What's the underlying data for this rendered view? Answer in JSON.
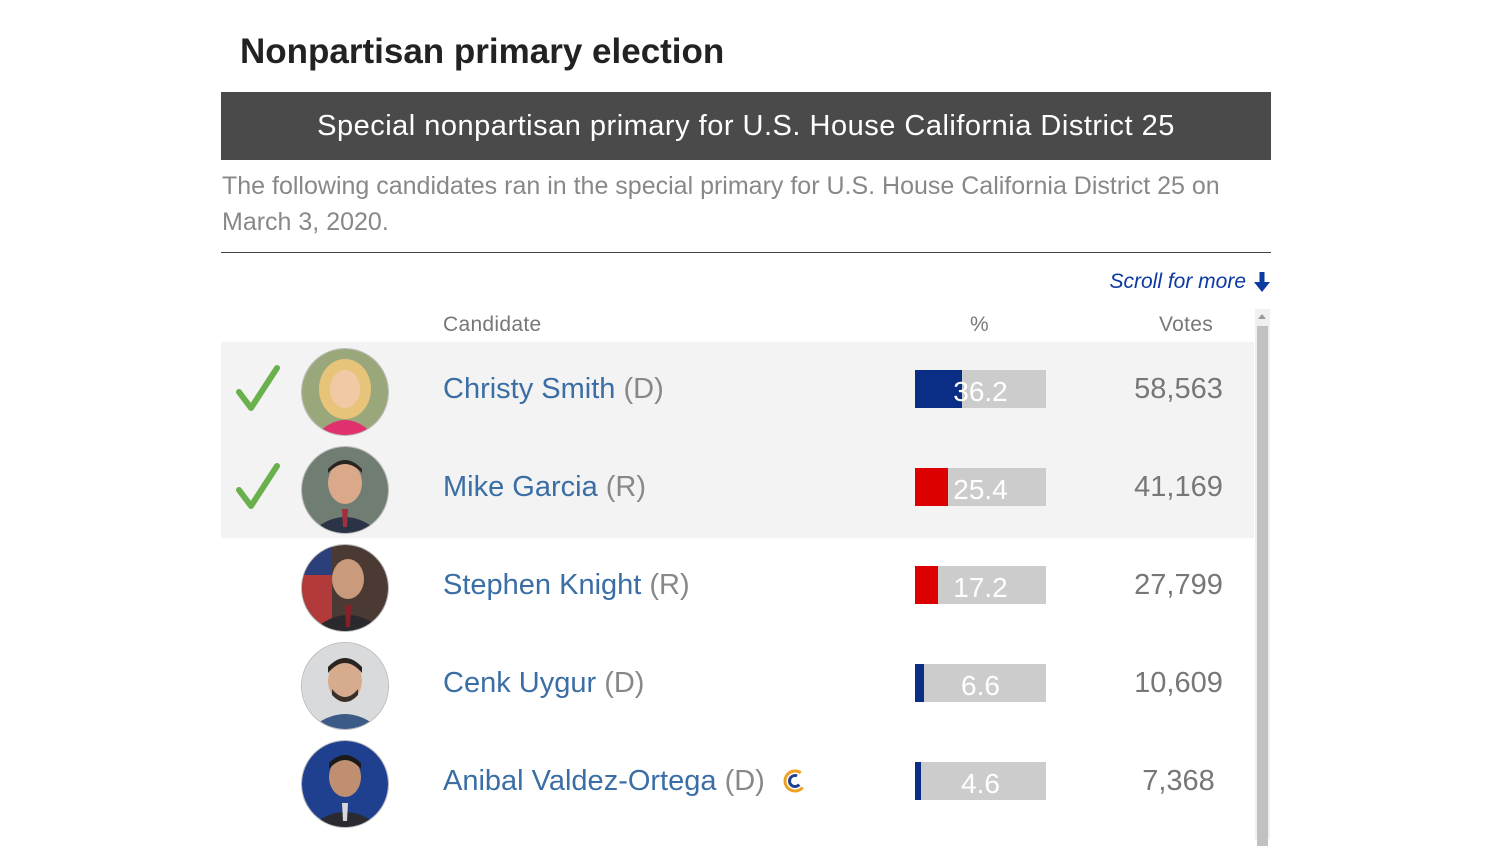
{
  "page": {
    "title": "Nonpartisan primary election",
    "banner": "Special nonpartisan primary for U.S. House California District 25",
    "intro": "The following candidates ran in the special primary for U.S. House California District 25 on March 3, 2020.",
    "scroll_hint": "Scroll for more"
  },
  "columns": {
    "candidate": "Candidate",
    "percent": "%",
    "votes": "Votes"
  },
  "colors": {
    "democrat": "#0a2e86",
    "republican": "#dd0000",
    "bar_bg": "#cccccc",
    "winner_check": "#6ab04c",
    "link": "#3a6ea5"
  },
  "candidates": [
    {
      "name": "Christy Smith",
      "party": "(D)",
      "percent_label": "36.2",
      "percent": 36.2,
      "votes": "58,563",
      "winner": true,
      "party_color": "democrat",
      "avatar_icon": "candidate-photo",
      "cc": false
    },
    {
      "name": "Mike Garcia",
      "party": "(R)",
      "percent_label": "25.4",
      "percent": 25.4,
      "votes": "41,169",
      "winner": true,
      "party_color": "republican",
      "avatar_icon": "candidate-photo",
      "cc": false
    },
    {
      "name": "Stephen Knight",
      "party": "(R)",
      "percent_label": "17.2",
      "percent": 17.2,
      "votes": "27,799",
      "winner": false,
      "party_color": "republican",
      "avatar_icon": "candidate-photo",
      "cc": false
    },
    {
      "name": "Cenk Uygur",
      "party": "(D)",
      "percent_label": "6.6",
      "percent": 6.6,
      "votes": "10,609",
      "winner": false,
      "party_color": "democrat",
      "avatar_icon": "candidate-photo",
      "cc": false
    },
    {
      "name": "Anibal Valdez-Ortega",
      "party": "(D)",
      "percent_label": "4.6",
      "percent": 4.6,
      "votes": "7,368",
      "winner": false,
      "party_color": "democrat",
      "avatar_icon": "candidate-photo",
      "cc": true
    }
  ]
}
